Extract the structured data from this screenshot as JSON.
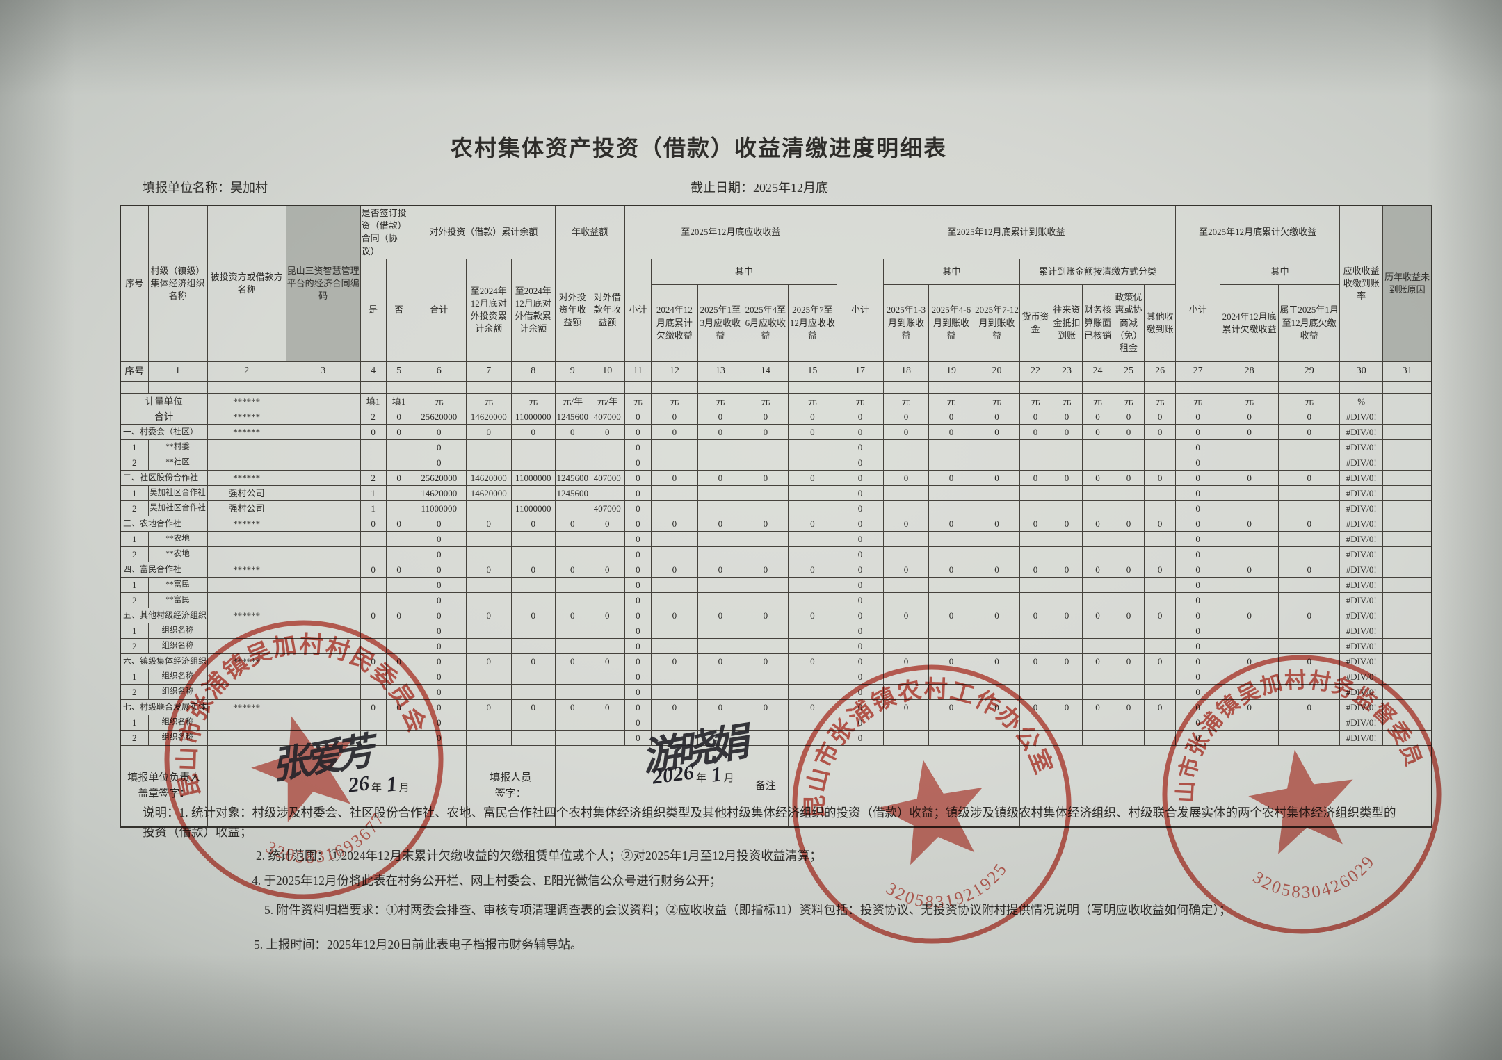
{
  "title": "农村集体资产投资（借款）收益清缴进度明细表",
  "meta": {
    "unit_line": "填报单位名称：吴加村",
    "date_line": "截止日期：2025年12月底"
  },
  "table": {
    "header": {
      "seq": "序号",
      "org": "村级（镇级）集体经济组织名称",
      "investee": "被投资方或借款方名称",
      "code": "昆山三资智慧管理平台的经济合同编码",
      "sign_group": "是否签订投资（借款）合同（协议）",
      "yes": "是",
      "no": "否",
      "balance_group": "对外投资（借款）累计余额",
      "balance_total": "合计",
      "balance_invest": "至2024年12月底对外投资累计余额",
      "balance_loan": "至2024年12月底对外借款累计余额",
      "annual_group": "年收益额",
      "annual_invest": "对外投资年收益额",
      "annual_loan": "对外借款年收益额",
      "receivable_group": "至2025年12月底应收收益",
      "subtotal": "小计",
      "among": "其中",
      "r12": "2024年12月底累计欠缴收益",
      "r13": "2025年1至3月应收收益",
      "r14": "2025年4至6月应收收益",
      "r15": "2025年7至12月应收收益",
      "received_group": "至2025年12月底累计到账收益",
      "rc18": "2025年1-3月到账收益",
      "rc19": "2025年4-6月到账收益",
      "rc20": "2025年7-12月到账收益",
      "method_group": "累计到账金额按清缴方式分类",
      "m22": "货币资金",
      "m23": "往来资金抵扣到账",
      "m24": "财务核算账面已核销",
      "m25": "政策优惠或协商减（免）租金",
      "m26": "其他收缴到账",
      "arrears_group": "至2025年12月底累计欠缴收益",
      "a28": "2024年12月底累计欠缴收益",
      "a29": "属于2025年1月至12月底欠缴收益",
      "rate": "应收收益收缴到账率",
      "reason": "历年收益未到账原因"
    },
    "col_numbers": [
      "序号",
      "1",
      "2",
      "3",
      "4",
      "5",
      "6",
      "7",
      "8",
      "9",
      "10",
      "11",
      "12",
      "13",
      "14",
      "15",
      "17",
      "18",
      "19",
      "20",
      "22",
      "23",
      "24",
      "25",
      "26",
      "27",
      "28",
      "29",
      "30",
      "31"
    ],
    "rows": [
      {
        "type": "unit",
        "cells": [
          "计量单位",
          "",
          "******",
          "",
          "填1",
          "填1",
          "元",
          "元",
          "元",
          "元/年",
          "元/年",
          "元",
          "元",
          "元",
          "元",
          "元",
          "元",
          "元",
          "元",
          "元",
          "元",
          "元",
          "元",
          "元",
          "元",
          "元",
          "元",
          "元",
          "%",
          ""
        ]
      },
      {
        "type": "total",
        "cells": [
          "合计",
          "",
          "******",
          "",
          "2",
          "0",
          "25620000",
          "14620000",
          "11000000",
          "1245600",
          "407000",
          "0",
          "0",
          "0",
          "0",
          "0",
          "0",
          "0",
          "0",
          "0",
          "0",
          "0",
          "0",
          "0",
          "0",
          "0",
          "0",
          "0",
          "#DIV/0!",
          ""
        ]
      },
      {
        "type": "section",
        "cells": [
          "一、村委会（社区）",
          "",
          "******",
          "",
          "0",
          "0",
          "0",
          "0",
          "0",
          "0",
          "0",
          "0",
          "0",
          "0",
          "0",
          "0",
          "0",
          "0",
          "0",
          "0",
          "0",
          "0",
          "0",
          "0",
          "0",
          "0",
          "0",
          "0",
          "#DIV/0!",
          ""
        ]
      },
      {
        "type": "detail",
        "cells": [
          "1",
          "**村委",
          "",
          "",
          "",
          "",
          "0",
          "",
          "",
          "",
          "",
          "0",
          "",
          "",
          "",
          "",
          "0",
          "",
          "",
          "",
          "",
          "",
          "",
          "",
          "",
          "0",
          "",
          "",
          "#DIV/0!",
          ""
        ]
      },
      {
        "type": "detail",
        "cells": [
          "2",
          "**社区",
          "",
          "",
          "",
          "",
          "0",
          "",
          "",
          "",
          "",
          "0",
          "",
          "",
          "",
          "",
          "0",
          "",
          "",
          "",
          "",
          "",
          "",
          "",
          "",
          "0",
          "",
          "",
          "#DIV/0!",
          ""
        ]
      },
      {
        "type": "section",
        "cells": [
          "二、社区股份合作社",
          "",
          "******",
          "",
          "2",
          "0",
          "25620000",
          "14620000",
          "11000000",
          "1245600",
          "407000",
          "0",
          "0",
          "0",
          "0",
          "0",
          "0",
          "0",
          "0",
          "0",
          "0",
          "0",
          "0",
          "0",
          "0",
          "0",
          "0",
          "0",
          "#DIV/0!",
          ""
        ]
      },
      {
        "type": "detail",
        "cells": [
          "1",
          "吴加社区合作社",
          "强村公司",
          "",
          "1",
          "",
          "14620000",
          "14620000",
          "",
          "1245600",
          "",
          "0",
          "",
          "",
          "",
          "",
          "0",
          "",
          "",
          "",
          "",
          "",
          "",
          "",
          "",
          "0",
          "",
          "",
          "#DIV/0!",
          ""
        ]
      },
      {
        "type": "detail",
        "cells": [
          "2",
          "吴加社区合作社",
          "强村公司",
          "",
          "1",
          "",
          "11000000",
          "",
          "11000000",
          "",
          "407000",
          "0",
          "",
          "",
          "",
          "",
          "0",
          "",
          "",
          "",
          "",
          "",
          "",
          "",
          "",
          "0",
          "",
          "",
          "#DIV/0!",
          ""
        ]
      },
      {
        "type": "section",
        "cells": [
          "三、农地合作社",
          "",
          "******",
          "",
          "0",
          "0",
          "0",
          "0",
          "0",
          "0",
          "0",
          "0",
          "0",
          "0",
          "0",
          "0",
          "0",
          "0",
          "0",
          "0",
          "0",
          "0",
          "0",
          "0",
          "0",
          "0",
          "0",
          "0",
          "#DIV/0!",
          ""
        ]
      },
      {
        "type": "detail",
        "cells": [
          "1",
          "**农地",
          "",
          "",
          "",
          "",
          "0",
          "",
          "",
          "",
          "",
          "0",
          "",
          "",
          "",
          "",
          "0",
          "",
          "",
          "",
          "",
          "",
          "",
          "",
          "",
          "0",
          "",
          "",
          "#DIV/0!",
          ""
        ]
      },
      {
        "type": "detail",
        "cells": [
          "2",
          "**农地",
          "",
          "",
          "",
          "",
          "0",
          "",
          "",
          "",
          "",
          "0",
          "",
          "",
          "",
          "",
          "0",
          "",
          "",
          "",
          "",
          "",
          "",
          "",
          "",
          "0",
          "",
          "",
          "#DIV/0!",
          ""
        ]
      },
      {
        "type": "section",
        "cells": [
          "四、富民合作社",
          "",
          "******",
          "",
          "0",
          "0",
          "0",
          "0",
          "0",
          "0",
          "0",
          "0",
          "0",
          "0",
          "0",
          "0",
          "0",
          "0",
          "0",
          "0",
          "0",
          "0",
          "0",
          "0",
          "0",
          "0",
          "0",
          "0",
          "#DIV/0!",
          ""
        ]
      },
      {
        "type": "detail",
        "cells": [
          "1",
          "**富民",
          "",
          "",
          "",
          "",
          "0",
          "",
          "",
          "",
          "",
          "0",
          "",
          "",
          "",
          "",
          "0",
          "",
          "",
          "",
          "",
          "",
          "",
          "",
          "",
          "0",
          "",
          "",
          "#DIV/0!",
          ""
        ]
      },
      {
        "type": "detail",
        "cells": [
          "2",
          "**富民",
          "",
          "",
          "",
          "",
          "0",
          "",
          "",
          "",
          "",
          "0",
          "",
          "",
          "",
          "",
          "0",
          "",
          "",
          "",
          "",
          "",
          "",
          "",
          "",
          "0",
          "",
          "",
          "#DIV/0!",
          ""
        ]
      },
      {
        "type": "section",
        "cells": [
          "五、其他村级经济组织",
          "",
          "******",
          "",
          "0",
          "0",
          "0",
          "0",
          "0",
          "0",
          "0",
          "0",
          "0",
          "0",
          "0",
          "0",
          "0",
          "0",
          "0",
          "0",
          "0",
          "0",
          "0",
          "0",
          "0",
          "0",
          "0",
          "0",
          "#DIV/0!",
          ""
        ]
      },
      {
        "type": "detail",
        "cells": [
          "1",
          "组织名称",
          "",
          "",
          "",
          "",
          "0",
          "",
          "",
          "",
          "",
          "0",
          "",
          "",
          "",
          "",
          "0",
          "",
          "",
          "",
          "",
          "",
          "",
          "",
          "",
          "0",
          "",
          "",
          "#DIV/0!",
          ""
        ]
      },
      {
        "type": "detail",
        "cells": [
          "2",
          "组织名称",
          "",
          "",
          "",
          "",
          "0",
          "",
          "",
          "",
          "",
          "0",
          "",
          "",
          "",
          "",
          "0",
          "",
          "",
          "",
          "",
          "",
          "",
          "",
          "",
          "0",
          "",
          "",
          "#DIV/0!",
          ""
        ]
      },
      {
        "type": "section",
        "cells": [
          "六、镇级集体经济组织",
          "",
          "******",
          "",
          "0",
          "0",
          "0",
          "0",
          "0",
          "0",
          "0",
          "0",
          "0",
          "0",
          "0",
          "0",
          "0",
          "0",
          "0",
          "0",
          "0",
          "0",
          "0",
          "0",
          "0",
          "0",
          "0",
          "0",
          "#DIV/0!",
          ""
        ]
      },
      {
        "type": "detail",
        "cells": [
          "1",
          "组织名称",
          "",
          "",
          "",
          "",
          "0",
          "",
          "",
          "",
          "",
          "0",
          "",
          "",
          "",
          "",
          "0",
          "",
          "",
          "",
          "",
          "",
          "",
          "",
          "",
          "0",
          "",
          "",
          "#DIV/0!",
          ""
        ]
      },
      {
        "type": "detail",
        "cells": [
          "2",
          "组织名称",
          "",
          "",
          "",
          "",
          "0",
          "",
          "",
          "",
          "",
          "0",
          "",
          "",
          "",
          "",
          "0",
          "",
          "",
          "",
          "",
          "",
          "",
          "",
          "",
          "0",
          "",
          "",
          "#DIV/0!",
          ""
        ]
      },
      {
        "type": "section",
        "cells": [
          "七、村级联合发展实体",
          "",
          "******",
          "",
          "0",
          "0",
          "0",
          "0",
          "0",
          "0",
          "0",
          "0",
          "0",
          "0",
          "0",
          "0",
          "0",
          "0",
          "0",
          "0",
          "0",
          "0",
          "0",
          "0",
          "0",
          "0",
          "0",
          "0",
          "#DIV/0!",
          ""
        ]
      },
      {
        "type": "detail",
        "cells": [
          "1",
          "组织名称",
          "",
          "",
          "",
          "",
          "0",
          "",
          "",
          "",
          "",
          "0",
          "",
          "",
          "",
          "",
          "0",
          "",
          "",
          "",
          "",
          "",
          "",
          "",
          "",
          "0",
          "",
          "",
          "#DIV/0!",
          ""
        ]
      },
      {
        "type": "detail",
        "cells": [
          "2",
          "组织名称",
          "",
          "",
          "",
          "",
          "0",
          "",
          "",
          "",
          "",
          "0",
          "",
          "",
          "",
          "",
          "0",
          "",
          "",
          "",
          "",
          "",
          "",
          "",
          "",
          "0",
          "",
          "",
          "#DIV/0!",
          ""
        ]
      }
    ],
    "footer": {
      "leader_label_line1": "填报单位负责人",
      "leader_label_line2": "盖章签字：",
      "staff_label_line1": "填报人员",
      "staff_label_line2": "签字：",
      "remark_label": "备注"
    }
  },
  "signatures": [
    {
      "name": "张爱芳",
      "year": "26",
      "year_unit": "年",
      "month": "1",
      "month_unit": "月"
    },
    {
      "name": "游晓娟",
      "year": "2026",
      "year_unit": "年",
      "month": "1",
      "month_unit": "月"
    }
  ],
  "stamps": [
    {
      "org": "昆山市张浦镇吴加村村民委员会",
      "number": "3205831693677"
    },
    {
      "org": "昆山市张浦镇农村工作办公室",
      "number": "3205831921925"
    },
    {
      "org": "昆山市张浦镇吴加村村务监督委员会",
      "number": "3205830426029"
    }
  ],
  "notes": [
    "说明：1. 统计对象：村级涉及村委会、社区股份合作社、农地、富民合作社四个农村集体经济组织类型及其他村级集体经济组织的投资（借款）收益；镇级涉及镇级农村集体经济组织、村级联合发展实体的两个农村集体经济组织类型的",
    "投资（借款）收益；",
    "2. 统计范围：①2024年12月末累计欠缴收益的欠缴租赁单位或个人；②对2025年1月至12月投资收益清算；",
    "4. 于2025年12月份将此表在村务公开栏、网上村委会、E阳光微信公众号进行财务公开；",
    "5. 附件资料归档要求：①村两委会排查、审核专项清理调查表的会议资料；②应收收益（即指标11）资料包括：投资协议、无投资协议附村提供情况说明（写明应收收益如何确定）；",
    "5. 上报时间：2025年12月20日前此表电子档报市财务辅导站。"
  ],
  "colors": {
    "stamp_red": "#c9473a",
    "paper": "#d9dbd6",
    "ink": "#2e2d2a"
  }
}
